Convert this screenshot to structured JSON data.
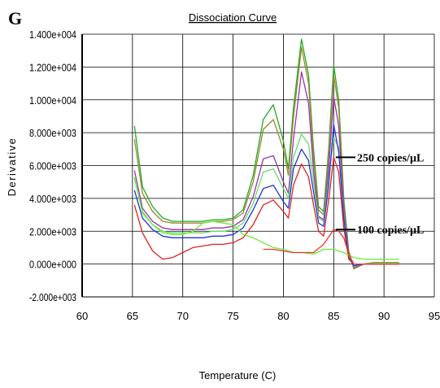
{
  "chart_data": {
    "type": "line",
    "panel_letter": "G",
    "title": "Dissociation Curve",
    "xlabel": "Temperature (C)",
    "ylabel": "Derivative",
    "xlim": [
      60,
      95
    ],
    "ylim": [
      -2000,
      14000
    ],
    "x_ticks": [
      "60",
      "65",
      "70",
      "75",
      "80",
      "85",
      "90",
      "95"
    ],
    "y_ticks": [
      "1.400e+004",
      "1.200e+004",
      "1.000e+004",
      "8.000e+003",
      "6.000e+003",
      "4.000e+003",
      "2.000e+003",
      "0.000e+000",
      "-2.000e+003"
    ],
    "x_tick_values": [
      60,
      65,
      70,
      75,
      80,
      85,
      90,
      95
    ],
    "y_tick_values": [
      14000,
      12000,
      10000,
      8000,
      6000,
      4000,
      2000,
      0,
      -2000
    ],
    "grid": true,
    "annotations": [
      {
        "text": "250 copies/µL",
        "x": 85.2,
        "y": 6500
      },
      {
        "text": "100 copies/µL",
        "x": 85.2,
        "y": 2100
      }
    ],
    "series": [
      {
        "color": "#22aa22",
        "x": [
          65.2,
          66,
          67,
          68,
          69,
          70,
          71,
          72,
          73,
          74,
          75,
          76,
          77,
          78,
          79,
          80,
          80.5,
          81,
          81.8,
          82.5,
          83,
          83.5,
          84,
          84.5,
          85,
          85.5,
          86,
          86.5,
          87,
          88,
          89,
          90,
          91.5
        ],
        "y": [
          8400,
          4700,
          3500,
          2800,
          2600,
          2600,
          2600,
          2600,
          2700,
          2700,
          2800,
          3300,
          5400,
          8800,
          9700,
          7500,
          5800,
          9500,
          13700,
          11500,
          7000,
          3500,
          3200,
          7000,
          12100,
          10000,
          4000,
          800,
          -200,
          0,
          100,
          100,
          100
        ]
      },
      {
        "color": "#998833",
        "x": [
          65.2,
          66,
          67,
          68,
          69,
          70,
          71,
          72,
          73,
          74,
          75,
          76,
          77,
          78,
          79,
          80,
          80.5,
          81,
          81.8,
          82.5,
          83,
          83.5,
          84,
          84.5,
          85,
          85.5,
          86,
          86.5,
          87,
          88,
          89,
          90,
          91.5
        ],
        "y": [
          7600,
          4300,
          3200,
          2600,
          2500,
          2500,
          2500,
          2500,
          2600,
          2600,
          2700,
          3100,
          5000,
          8200,
          8800,
          7000,
          5400,
          8900,
          13200,
          11000,
          6500,
          3300,
          3000,
          6600,
          11500,
          9500,
          3800,
          700,
          -300,
          0,
          100,
          100,
          100
        ]
      },
      {
        "color": "#9933aa",
        "x": [
          65.2,
          66,
          67,
          68,
          69,
          70,
          71,
          72,
          73,
          74,
          75,
          76,
          77,
          78,
          79,
          80,
          80.5,
          81,
          81.8,
          82.5,
          83,
          83.5,
          84,
          84.5,
          85,
          85.5,
          86,
          86.5,
          87,
          88,
          89,
          90,
          91.5
        ],
        "y": [
          5700,
          3400,
          2600,
          2200,
          2100,
          2100,
          2100,
          2100,
          2200,
          2200,
          2300,
          2700,
          4100,
          6400,
          6600,
          5000,
          4300,
          7600,
          11700,
          9800,
          5700,
          2900,
          2700,
          5800,
          10200,
          8400,
          3300,
          600,
          -200,
          0,
          50,
          50,
          50
        ]
      },
      {
        "color": "#66dd66",
        "x": [
          65.2,
          66,
          67,
          68,
          69,
          70,
          71,
          72,
          73,
          74,
          75,
          76,
          77,
          78,
          79,
          80,
          80.5,
          81,
          81.8,
          82.5,
          83,
          83.5,
          84,
          84.5,
          85,
          85.5,
          86,
          86.5,
          87,
          88,
          89,
          90,
          91.5
        ],
        "y": [
          5200,
          3200,
          2400,
          2000,
          1900,
          1900,
          1900,
          1900,
          2000,
          2000,
          2100,
          2500,
          3700,
          5600,
          5800,
          4600,
          4000,
          6500,
          7900,
          7300,
          5000,
          2800,
          2600,
          5200,
          7700,
          7100,
          3000,
          500,
          -150,
          0,
          50,
          50,
          50
        ]
      },
      {
        "color": "#2233dd",
        "x": [
          65.2,
          66,
          67,
          68,
          69,
          70,
          71,
          72,
          73,
          74,
          75,
          76,
          77,
          78,
          79,
          80,
          80.5,
          81,
          81.8,
          82.5,
          83,
          83.5,
          84,
          84.5,
          85,
          85.5,
          86,
          86.5,
          87,
          88,
          89,
          90,
          91.5
        ],
        "y": [
          4500,
          2800,
          2100,
          1700,
          1600,
          1600,
          1600,
          1600,
          1700,
          1700,
          1800,
          2200,
          3300,
          4600,
          4800,
          3800,
          3400,
          5800,
          7000,
          6300,
          4400,
          2500,
          2300,
          4800,
          8500,
          6800,
          2800,
          400,
          -100,
          0,
          0,
          0,
          0
        ]
      },
      {
        "color": "#dd2222",
        "x": [
          65.2,
          66,
          67,
          68,
          69,
          70,
          71,
          72,
          73,
          74,
          75,
          76,
          77,
          78,
          79,
          80,
          80.5,
          81,
          81.8,
          82.5,
          83,
          83.5,
          84,
          84.5,
          85,
          85.5,
          86,
          86.5,
          87,
          88,
          89,
          90,
          91.5
        ],
        "y": [
          3600,
          1900,
          800,
          300,
          400,
          700,
          1000,
          1100,
          1200,
          1200,
          1300,
          1600,
          2400,
          3600,
          3900,
          3200,
          2800,
          4800,
          6100,
          5300,
          3600,
          2000,
          1700,
          3900,
          6500,
          5600,
          2200,
          300,
          0,
          0,
          0,
          0,
          0
        ]
      },
      {
        "color": "#66ee33",
        "x": [
          65.2,
          66,
          67,
          68,
          69,
          70,
          71,
          72,
          73,
          74,
          75,
          76,
          77,
          78,
          79,
          80,
          81,
          82,
          83,
          84,
          85,
          86,
          87,
          88,
          89,
          90,
          91.5
        ],
        "y": [
          5300,
          3100,
          2400,
          1900,
          1800,
          1800,
          2000,
          2500,
          2600,
          2500,
          2400,
          1800,
          1600,
          1300,
          1000,
          900,
          700,
          700,
          600,
          900,
          900,
          700,
          400,
          300,
          300,
          300,
          300
        ]
      },
      {
        "color": "#ee3333",
        "x": [
          78,
          79,
          80,
          81,
          82,
          83,
          84,
          85,
          85.5,
          86,
          86.5,
          87,
          88,
          89,
          90,
          91.5
        ],
        "y": [
          900,
          900,
          800,
          700,
          700,
          700,
          1200,
          2100,
          2000,
          1600,
          600,
          0,
          0,
          0,
          0,
          0
        ]
      }
    ]
  }
}
